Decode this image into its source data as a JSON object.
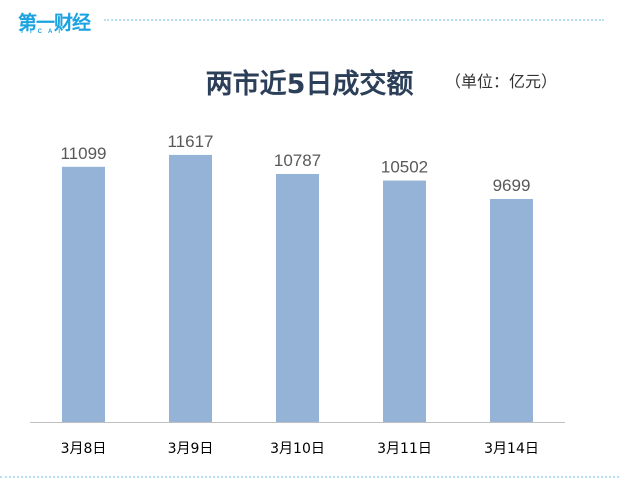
{
  "logo": {
    "text": "第一财经",
    "subtext": "YICAI"
  },
  "chart_data": {
    "type": "bar",
    "title": "两市近5日成交额",
    "unit": "（单位：亿元）",
    "categories": [
      "3月8日",
      "3月9日",
      "3月10日",
      "3月11日",
      "3月14日"
    ],
    "values": [
      11099,
      11617,
      10787,
      10502,
      9699
    ],
    "ylim": [
      0,
      12700
    ],
    "bar_color": "#95b3d7",
    "label_color": "#595959",
    "axis_color": "#bfbfbf",
    "grid": false,
    "legend": "none"
  }
}
